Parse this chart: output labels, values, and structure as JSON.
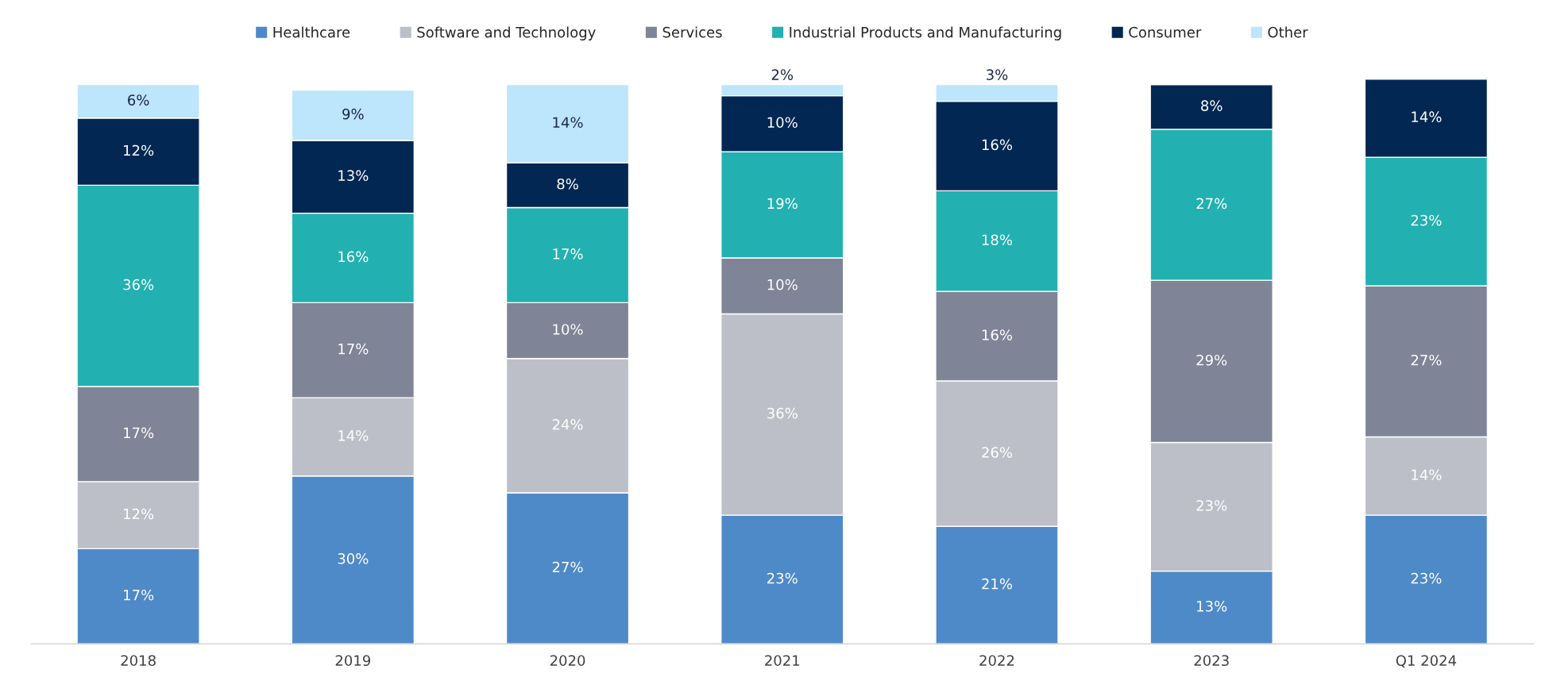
{
  "chart_data": {
    "type": "bar",
    "stacked": true,
    "legend": "top",
    "grid": false,
    "categories": [
      "2018",
      "2019",
      "2020",
      "2021",
      "2022",
      "2023",
      "Q1 2024"
    ],
    "series": [
      {
        "name": "Healthcare",
        "color": "#4e8ac8",
        "values": [
          17,
          30,
          27,
          23,
          21,
          13,
          23
        ],
        "value_labels": [
          "17%",
          "30%",
          "27%",
          "23%",
          "21%",
          "13%",
          "23%"
        ]
      },
      {
        "name": "Software and Technology",
        "color": "#bcbfc7",
        "values": [
          12,
          14,
          24,
          36,
          26,
          23,
          14
        ],
        "value_labels": [
          "12%",
          "14%",
          "24%",
          "36%",
          "26%",
          "23%",
          "14%"
        ]
      },
      {
        "name": "Services",
        "color": "#7f8496",
        "values": [
          17,
          17,
          10,
          10,
          16,
          29,
          27
        ],
        "value_labels": [
          "17%",
          "17%",
          "10%",
          "10%",
          "16%",
          "29%",
          "27%"
        ]
      },
      {
        "name": "Industrial Products and Manufacturing",
        "color": "#22b1b0",
        "values": [
          36,
          16,
          17,
          19,
          18,
          27,
          23
        ],
        "value_labels": [
          "36%",
          "16%",
          "17%",
          "19%",
          "18%",
          "27%",
          "23%"
        ]
      },
      {
        "name": "Consumer",
        "color": "#022752",
        "values": [
          12,
          13,
          8,
          10,
          16,
          8,
          14
        ],
        "value_labels": [
          "12%",
          "13%",
          "8%",
          "10%",
          "16%",
          "8%",
          "14%"
        ]
      },
      {
        "name": "Other",
        "color": "#bde5fb",
        "values": [
          6,
          9,
          14,
          2,
          3,
          null,
          null
        ],
        "value_labels": [
          "6%",
          "9%",
          "14%",
          "2%",
          "3%",
          null,
          null
        ]
      }
    ]
  }
}
